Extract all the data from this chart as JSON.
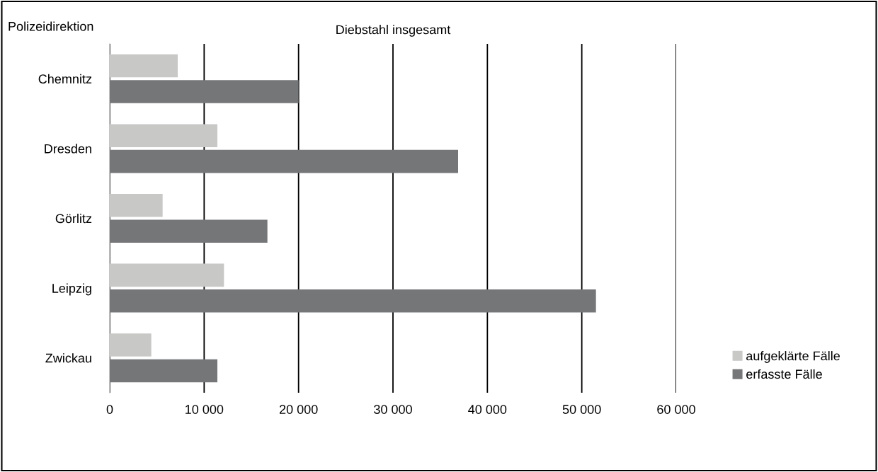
{
  "chart_data": {
    "type": "bar",
    "orientation": "horizontal",
    "title": "Diebstahl insgesamt",
    "ylabel": "Polizeidirektion",
    "categories": [
      "Chemnitz",
      "Dresden",
      "Görlitz",
      "Leipzig",
      "Zwickau"
    ],
    "series": [
      {
        "name": "aufgeklärte Fälle",
        "color": "#c8c8c7",
        "values": [
          7200,
          11400,
          5600,
          12100,
          4400
        ]
      },
      {
        "name": "erfasste Fälle",
        "color": "#757678",
        "values": [
          20000,
          36900,
          16700,
          51500,
          11400
        ]
      }
    ],
    "xlim": [
      0,
      60000
    ],
    "xticks": [
      0,
      {
        "value": 10000,
        "label": "10 000"
      },
      {
        "value": 20000,
        "label": "20 000"
      },
      {
        "value": 30000,
        "label": "30 000"
      },
      {
        "value": 40000,
        "label": "40 000"
      },
      {
        "value": 50000,
        "label": "50 000"
      },
      {
        "value": 60000,
        "label": "60 000"
      }
    ],
    "grid": "x",
    "legend": "right"
  }
}
